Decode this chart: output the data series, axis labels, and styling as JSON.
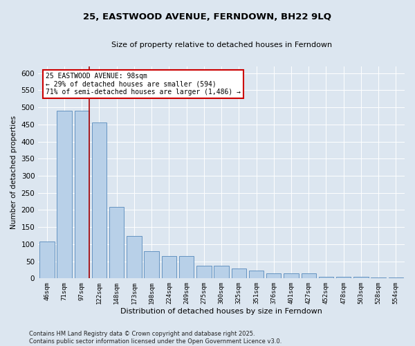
{
  "title": "25, EASTWOOD AVENUE, FERNDOWN, BH22 9LQ",
  "subtitle": "Size of property relative to detached houses in Ferndown",
  "xlabel": "Distribution of detached houses by size in Ferndown",
  "ylabel": "Number of detached properties",
  "categories": [
    "46sqm",
    "71sqm",
    "97sqm",
    "122sqm",
    "148sqm",
    "173sqm",
    "198sqm",
    "224sqm",
    "249sqm",
    "275sqm",
    "300sqm",
    "325sqm",
    "351sqm",
    "376sqm",
    "401sqm",
    "427sqm",
    "452sqm",
    "478sqm",
    "503sqm",
    "528sqm",
    "554sqm"
  ],
  "values": [
    108,
    490,
    490,
    455,
    210,
    125,
    80,
    65,
    65,
    38,
    38,
    30,
    22,
    14,
    14,
    14,
    5,
    5,
    5,
    2,
    2
  ],
  "bar_color": "#b8d0e8",
  "bar_edge_color": "#5588bb",
  "property_size_index": 2,
  "annotation_line1": "25 EASTWOOD AVENUE: 98sqm",
  "annotation_line2": "← 29% of detached houses are smaller (594)",
  "annotation_line3": "71% of semi-detached houses are larger (1,486) →",
  "vline_color": "#aa0000",
  "annotation_box_facecolor": "#ffffff",
  "annotation_box_edgecolor": "#cc0000",
  "background_color": "#dce6f0",
  "plot_bg_color": "#dce6f0",
  "ylim": [
    0,
    620
  ],
  "yticks": [
    0,
    50,
    100,
    150,
    200,
    250,
    300,
    350,
    400,
    450,
    500,
    550,
    600
  ],
  "footer_line1": "Contains HM Land Registry data © Crown copyright and database right 2025.",
  "footer_line2": "Contains public sector information licensed under the Open Government Licence v3.0."
}
